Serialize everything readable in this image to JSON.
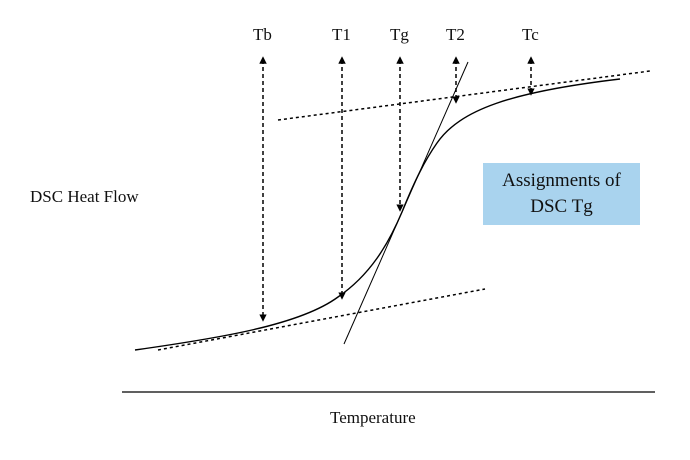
{
  "markers": [
    {
      "id": "tb",
      "label": "Tb"
    },
    {
      "id": "t1",
      "label": "T1"
    },
    {
      "id": "tg",
      "label": "Tg"
    },
    {
      "id": "t2",
      "label": "T2"
    },
    {
      "id": "tc",
      "label": "Tc"
    }
  ],
  "y_axis_label": "DSC Heat Flow",
  "x_axis_label": "Temperature",
  "callout": {
    "line1": "Assignments of",
    "line2": "DSC Tg",
    "color": "#a9d3ee"
  }
}
